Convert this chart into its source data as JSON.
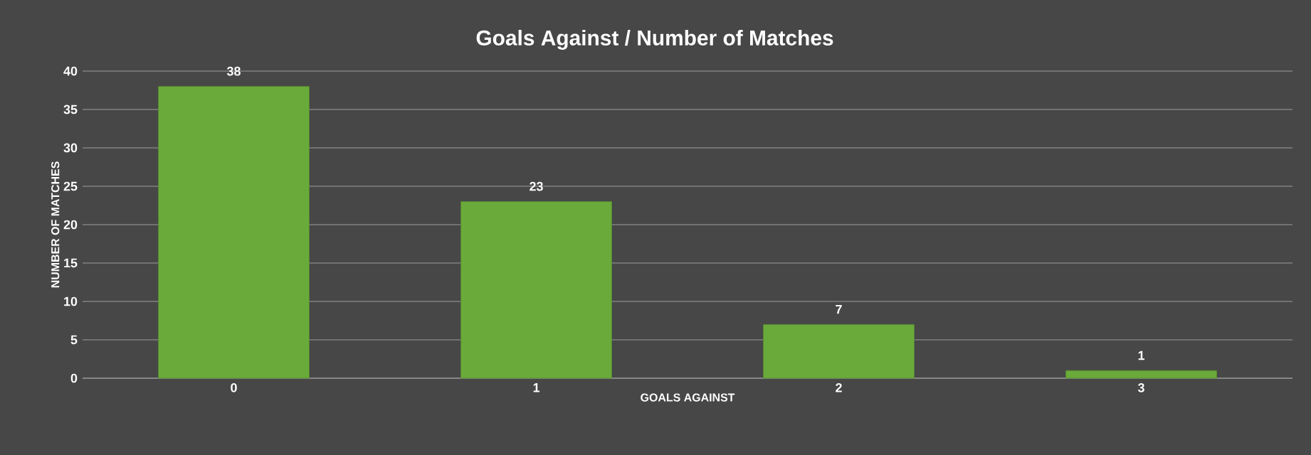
{
  "chart_data": {
    "type": "bar",
    "title": "Goals Against / Number of Matches",
    "xlabel": "GOALS AGAINST",
    "ylabel": "NUMBER OF MATCHES",
    "categories": [
      "0",
      "1",
      "2",
      "3"
    ],
    "values": [
      38,
      23,
      7,
      1
    ],
    "color": "#6aaa3a",
    "ylim": [
      0,
      40
    ],
    "yticks": [
      0,
      5,
      10,
      15,
      20,
      25,
      30,
      35,
      40
    ],
    "grid": "y",
    "data_labels": true
  }
}
